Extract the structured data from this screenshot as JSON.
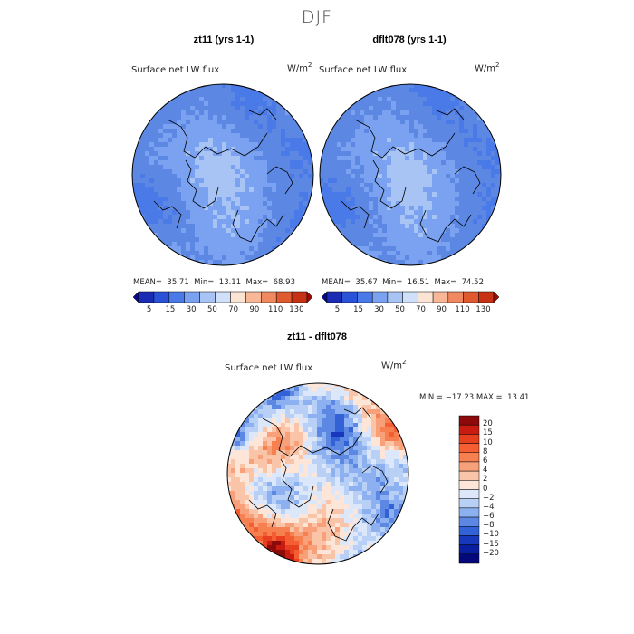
{
  "figure": {
    "title": "DJF"
  },
  "chart_data": [
    {
      "type": "heatmap",
      "title": "zt11 (yrs 1-1)",
      "subtitle": "Surface net LW flux",
      "units": "W/m2",
      "units_base": "W/m",
      "units_exp": "2",
      "projection": "north polar stereographic",
      "stats": {
        "mean": "35.71",
        "min": "13.11",
        "max": "68.93"
      },
      "stats_labels": {
        "mean": "MEAN=",
        "min": "Min=",
        "max": "Max="
      },
      "colorbar": {
        "levels": [
          5,
          15,
          30,
          50,
          70,
          90,
          110,
          130
        ],
        "tick_labels": [
          "5",
          "15",
          "30",
          "50",
          "70",
          "90",
          "110",
          "130"
        ],
        "colors": [
          "#08088c",
          "#1a2cb4",
          "#2a52d8",
          "#4a7ae8",
          "#7aa2f0",
          "#a8c4f4",
          "#d0e0f8",
          "#fbe4d4",
          "#f8b898",
          "#f08860",
          "#e05a30",
          "#c83214",
          "#9a0c08"
        ]
      }
    },
    {
      "type": "heatmap",
      "title": "dflt078 (yrs 1-1)",
      "subtitle": "Surface net LW flux",
      "units": "W/m2",
      "units_base": "W/m",
      "units_exp": "2",
      "projection": "north polar stereographic",
      "stats": {
        "mean": "35.67",
        "min": "16.51",
        "max": "74.52"
      },
      "stats_labels": {
        "mean": "MEAN=",
        "min": "Min=",
        "max": "Max="
      },
      "colorbar": {
        "levels": [
          5,
          15,
          30,
          50,
          70,
          90,
          110,
          130
        ],
        "tick_labels": [
          "5",
          "15",
          "30",
          "50",
          "70",
          "90",
          "110",
          "130"
        ],
        "colors": [
          "#08088c",
          "#1a2cb4",
          "#2a52d8",
          "#4a7ae8",
          "#7aa2f0",
          "#a8c4f4",
          "#d0e0f8",
          "#fbe4d4",
          "#f8b898",
          "#f08860",
          "#e05a30",
          "#c83214",
          "#9a0c08"
        ]
      }
    },
    {
      "type": "heatmap",
      "title": "zt11 - dflt078",
      "subtitle": "Surface net LW flux",
      "units": "W/m2",
      "units_base": "W/m",
      "units_exp": "2",
      "projection": "north polar stereographic",
      "minmax_text": "MIN = −17.23 MAX =  13.41",
      "stats": {
        "min": "-17.23",
        "max": "13.41"
      },
      "colorbar": {
        "orientation": "vertical",
        "levels": [
          20,
          15,
          10,
          8,
          6,
          4,
          2,
          0,
          -2,
          -4,
          -6,
          -8,
          -10,
          -15,
          -20
        ],
        "tick_labels": [
          "20",
          "15",
          "10",
          "8",
          "6",
          "4",
          "2",
          "0",
          "−2",
          "−4",
          "−6",
          "−8",
          "−10",
          "−15",
          "−20"
        ],
        "colors": [
          "#8c0a0a",
          "#c81c10",
          "#e6401e",
          "#f45e32",
          "#f68050",
          "#f8a07a",
          "#fac4a8",
          "#fde6d8",
          "#dce8fa",
          "#b8d0f6",
          "#8cb0f0",
          "#5c88e4",
          "#3262d6",
          "#1838bc",
          "#0a1ea0",
          "#04087a"
        ]
      }
    }
  ]
}
